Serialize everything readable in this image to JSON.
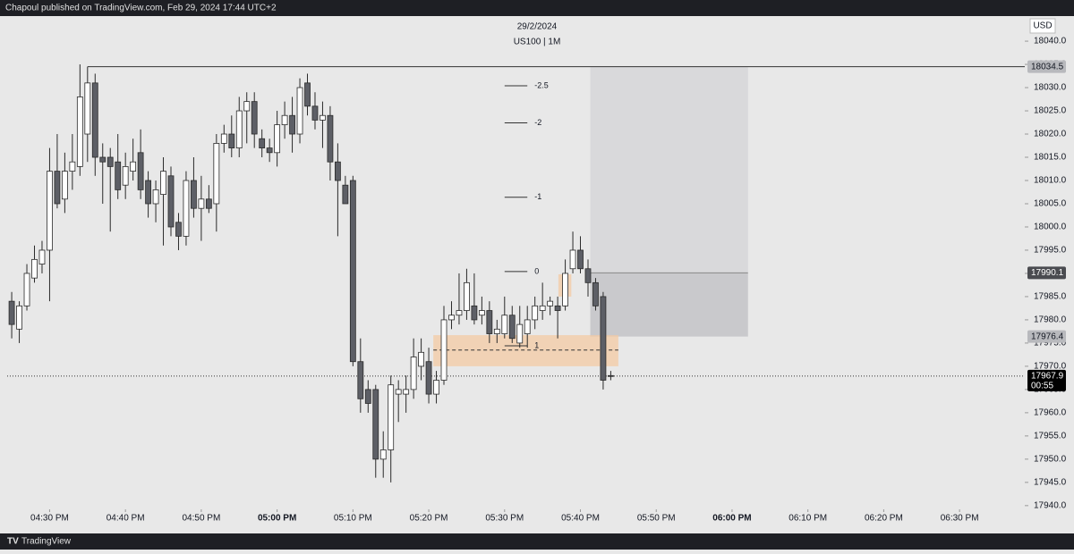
{
  "page": {
    "header": "Chapoul published on TradingView.com, Feb 29, 2024 17:44 UTC+2",
    "footer": "TradingView"
  },
  "chart_data": {
    "type": "candlestick",
    "title": "29/2/2024",
    "subtitle": "US100 | 1M",
    "currency": "USD",
    "up_color": "#ffffff",
    "down_color": "#5d5f66",
    "outline_color": "#2a2a2a",
    "open": [
      17984,
      17978,
      17983,
      17989,
      17992,
      17995,
      18012,
      18006,
      18012,
      18013,
      18020,
      18031,
      18015,
      18015,
      18014,
      18009,
      18012,
      18016,
      18010,
      18005,
      18007,
      18011,
      18001,
      17998,
      18010,
      18004,
      18006,
      18005,
      18018,
      18020,
      18017,
      18025,
      18027,
      18019,
      18017,
      18016,
      18022,
      18024,
      18020,
      18031,
      18026,
      18023,
      18024,
      18014,
      18009,
      18010,
      17971,
      17965,
      17965,
      17950,
      17952,
      17964,
      17964,
      17965,
      17970,
      17971,
      17964,
      17967,
      17980,
      17981,
      17982,
      17983,
      17981,
      17982,
      17977,
      17977,
      17981,
      17975,
      17977,
      17980,
      17982,
      17983,
      17983,
      17983,
      17991,
      17995,
      17991,
      17988,
      17985,
      17968
    ],
    "high": [
      17986,
      17984,
      17992,
      17996,
      17997,
      18017,
      18020,
      18016,
      18020,
      18035,
      18034.5,
      18033,
      18018,
      18017,
      18020,
      18016,
      18019,
      18021,
      18012,
      18010,
      18015,
      18013,
      18003,
      18012,
      18015,
      18011,
      18009,
      18020,
      18022,
      18024,
      18028,
      18029,
      18029,
      18021,
      18019,
      18025,
      18027,
      18028,
      18032,
      18033,
      18029,
      18027,
      18026,
      18018,
      18011,
      18011,
      17976,
      17967,
      17966,
      17956,
      17968,
      17967,
      17968,
      17976,
      17976,
      17974,
      17969,
      17983,
      17984,
      17990,
      17991,
      17990,
      17985,
      17984,
      17980,
      17985,
      17983,
      17983,
      17983,
      17985,
      17988,
      17985,
      17985,
      17993,
      17999,
      17998,
      17993,
      17989,
      17986,
      17969
    ],
    "low": [
      17976,
      17975,
      17982,
      17988,
      17990,
      17984,
      18004,
      18003,
      18008,
      18011,
      18014,
      18011,
      18005,
      17999,
      18006,
      18006,
      18010,
      18006,
      18002,
      18001,
      17996,
      17998,
      17995,
      17996,
      18002,
      17997,
      18003,
      17999,
      18016,
      18015,
      18015,
      18018,
      18017,
      18015,
      18014,
      18013,
      18019,
      18016,
      18018,
      18024,
      18021,
      18017,
      18010,
      17998,
      18005,
      17970,
      17960,
      17960,
      17946,
      17946,
      17945,
      17958,
      17960,
      17963,
      17967,
      17962,
      17962,
      17966,
      17978,
      17979,
      17980,
      17979,
      17979,
      17975,
      17975,
      17976,
      17975,
      17974,
      17974,
      17978,
      17980,
      17981,
      17976,
      17982,
      17990,
      17990,
      17985,
      17982,
      17965,
      17967
    ],
    "close": [
      17979,
      17983,
      17990,
      17993,
      17995,
      18012,
      18005,
      18012,
      18014,
      18028,
      18031,
      18015,
      18014,
      18013,
      18008,
      18013,
      18014,
      18008,
      18005,
      18008,
      18012,
      18000,
      17998,
      18010,
      18004,
      18006,
      18004,
      18018,
      18020,
      18017,
      18025,
      18027,
      18020,
      18017,
      18016,
      18022,
      18024,
      18020,
      18030,
      18026,
      18023,
      18024,
      18014,
      18010,
      18005,
      17971,
      17963,
      17962,
      17950,
      17952,
      17966,
      17965,
      17965,
      17972,
      17973,
      17964,
      17967,
      17980,
      17981,
      17982,
      17988,
      17980,
      17982,
      17977,
      17978,
      17981,
      17976,
      17979,
      17980,
      17983,
      17983,
      17984,
      17982,
      17990,
      17995,
      17991,
      17988,
      17983,
      17967,
      17967.9
    ],
    "xlim": [
      -0.6,
      133.6
    ],
    "xticks": [
      {
        "value": 5,
        "label": "04:30 PM"
      },
      {
        "value": 15,
        "label": "04:40 PM"
      },
      {
        "value": 25,
        "label": "04:50 PM"
      },
      {
        "value": 35,
        "label": "05:00 PM"
      },
      {
        "value": 45,
        "label": "05:10 PM"
      },
      {
        "value": 55,
        "label": "05:20 PM"
      },
      {
        "value": 65,
        "label": "05:30 PM"
      },
      {
        "value": 75,
        "label": "05:40 PM"
      },
      {
        "value": 85,
        "label": "05:50 PM"
      },
      {
        "value": 95,
        "label": "06:00 PM"
      },
      {
        "value": 105,
        "label": "06:10 PM"
      },
      {
        "value": 115,
        "label": "06:20 PM"
      },
      {
        "value": 125,
        "label": "06:30 PM"
      }
    ],
    "bold_xticks": [
      3,
      9
    ],
    "ylim": [
      17939.2,
      18045.4
    ],
    "yticks": [
      {
        "value": 17940,
        "label": "17940.0"
      },
      {
        "value": 17945,
        "label": "17945.0"
      },
      {
        "value": 17950,
        "label": "17950.0"
      },
      {
        "value": 17955,
        "label": "17955.0"
      },
      {
        "value": 17960,
        "label": "17960.0"
      },
      {
        "value": 17965,
        "label": "17965.0"
      },
      {
        "value": 17970,
        "label": "17970.0"
      },
      {
        "value": 17975,
        "label": "17975.0"
      },
      {
        "value": 17980,
        "label": "17980.0"
      },
      {
        "value": 17985,
        "label": "17985.0"
      },
      {
        "value": 17990,
        "label": "17990.0"
      },
      {
        "value": 17995,
        "label": "17995.0"
      },
      {
        "value": 18000,
        "label": "18000.0"
      },
      {
        "value": 18005,
        "label": "18005.0"
      },
      {
        "value": 18010,
        "label": "18010.0"
      },
      {
        "value": 18015,
        "label": "18015.0"
      },
      {
        "value": 18020,
        "label": "18020.0"
      },
      {
        "value": 18025,
        "label": "18025.0"
      },
      {
        "value": 18030,
        "label": "18030.0"
      },
      {
        "value": 18035,
        "label": "18035.0"
      },
      {
        "value": 18040,
        "label": "18040.0"
      }
    ],
    "price_labels": [
      {
        "value": 18034.5,
        "color": "#b8b9bd",
        "text_color": "#131722"
      },
      {
        "value": 17990.1,
        "color": "#4a4b50",
        "text_color": "#ffffff"
      },
      {
        "value": 17976.4,
        "color": "#b8b9bd",
        "text_color": "#131722"
      },
      {
        "value": 17967.9,
        "color": "#000000",
        "text_color": "#ffffff",
        "countdown": "00:55"
      }
    ],
    "high_line": {
      "price": 18034.5,
      "from": 10
    },
    "fib": {
      "levels": [
        -2.5,
        -2,
        -1,
        0,
        1
      ],
      "prices": [
        18030.4,
        18022.4,
        18006.4,
        17990.4,
        17974.4
      ],
      "from": 65,
      "to": 68
    },
    "position": {
      "stop": 18034.5,
      "entry": 17990.1,
      "target": 17976.4,
      "from": 76.3,
      "to": 97.1
    },
    "zones": [
      {
        "top": 17976.7,
        "bottom": 17970.0,
        "from": 55.6,
        "to": 80.0
      },
      {
        "top": 17989.8,
        "bottom": 17985.0,
        "from": 72.1,
        "to": 73.8
      }
    ],
    "dashed_level": {
      "price": 17973.5,
      "from": 55.6,
      "to": 80.0
    }
  }
}
